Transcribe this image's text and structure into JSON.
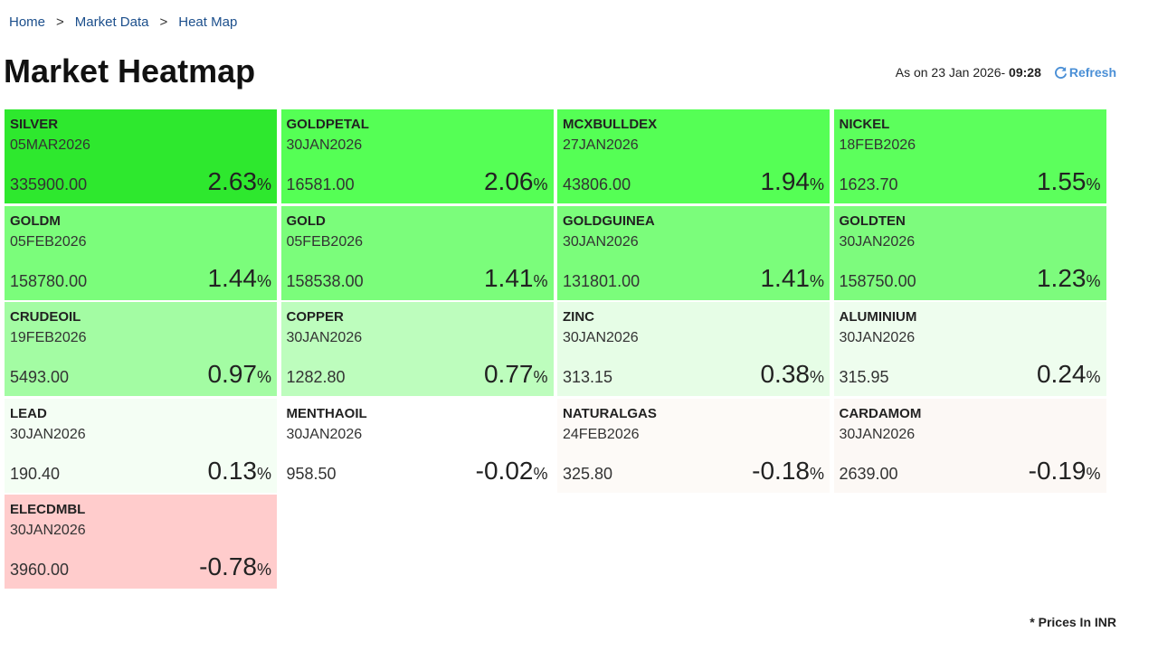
{
  "breadcrumb": {
    "items": [
      "Home",
      "Market Data",
      "Heat Map"
    ],
    "separator": ">"
  },
  "header": {
    "title": "Market Heatmap",
    "as_on": "As on 23 Jan 2026- ",
    "time": "09:28",
    "refresh": "Refresh"
  },
  "tiles": [
    {
      "symbol": "SILVER",
      "expiry": "05MAR2026",
      "price": "335900.00",
      "change": "2.63",
      "change_unit": "%",
      "color": "#2ee82e"
    },
    {
      "symbol": "GOLDPETAL",
      "expiry": "30JAN2026",
      "price": "16581.00",
      "change": "2.06",
      "change_unit": "%",
      "color": "#55ff55"
    },
    {
      "symbol": "MCXBULLDEX",
      "expiry": "27JAN2026",
      "price": "43806.00",
      "change": "1.94",
      "change_unit": "%",
      "color": "#55ff55"
    },
    {
      "symbol": "NICKEL",
      "expiry": "18FEB2026",
      "price": "1623.70",
      "change": "1.55",
      "change_unit": "%",
      "color": "#5cff5c"
    },
    {
      "symbol": "GOLDM",
      "expiry": "05FEB2026",
      "price": "158780.00",
      "change": "1.44",
      "change_unit": "%",
      "color": "#7bfd7b"
    },
    {
      "symbol": "GOLD",
      "expiry": "05FEB2026",
      "price": "158538.00",
      "change": "1.41",
      "change_unit": "%",
      "color": "#7bfd7b"
    },
    {
      "symbol": "GOLDGUINEA",
      "expiry": "30JAN2026",
      "price": "131801.00",
      "change": "1.41",
      "change_unit": "%",
      "color": "#7bfd7b"
    },
    {
      "symbol": "GOLDTEN",
      "expiry": "30JAN2026",
      "price": "158750.00",
      "change": "1.23",
      "change_unit": "%",
      "color": "#7dfb7d"
    },
    {
      "symbol": "CRUDEOIL",
      "expiry": "19FEB2026",
      "price": "5493.00",
      "change": "0.97",
      "change_unit": "%",
      "color": "#a3fca3"
    },
    {
      "symbol": "COPPER",
      "expiry": "30JAN2026",
      "price": "1282.80",
      "change": "0.77",
      "change_unit": "%",
      "color": "#bdfdbd"
    },
    {
      "symbol": "ZINC",
      "expiry": "30JAN2026",
      "price": "313.15",
      "change": "0.38",
      "change_unit": "%",
      "color": "#e6fde6"
    },
    {
      "symbol": "ALUMINIUM",
      "expiry": "30JAN2026",
      "price": "315.95",
      "change": "0.24",
      "change_unit": "%",
      "color": "#eefdee"
    },
    {
      "symbol": "LEAD",
      "expiry": "30JAN2026",
      "price": "190.40",
      "change": "0.13",
      "change_unit": "%",
      "color": "#f4fef4"
    },
    {
      "symbol": "MENTHAOIL",
      "expiry": "30JAN2026",
      "price": "958.50",
      "change": "-0.02",
      "change_unit": "%",
      "color": "#ffffff"
    },
    {
      "symbol": "NATURALGAS",
      "expiry": "24FEB2026",
      "price": "325.80",
      "change": "-0.18",
      "change_unit": "%",
      "color": "#fdfaf7"
    },
    {
      "symbol": "CARDAMOM",
      "expiry": "30JAN2026",
      "price": "2639.00",
      "change": "-0.19",
      "change_unit": "%",
      "color": "#fcf8f5"
    },
    {
      "symbol": "ELECDMBL",
      "expiry": "30JAN2026",
      "price": "3960.00",
      "change": "-0.78",
      "change_unit": "%",
      "color": "#ffcccc"
    }
  ],
  "footnote": "* Prices In INR"
}
